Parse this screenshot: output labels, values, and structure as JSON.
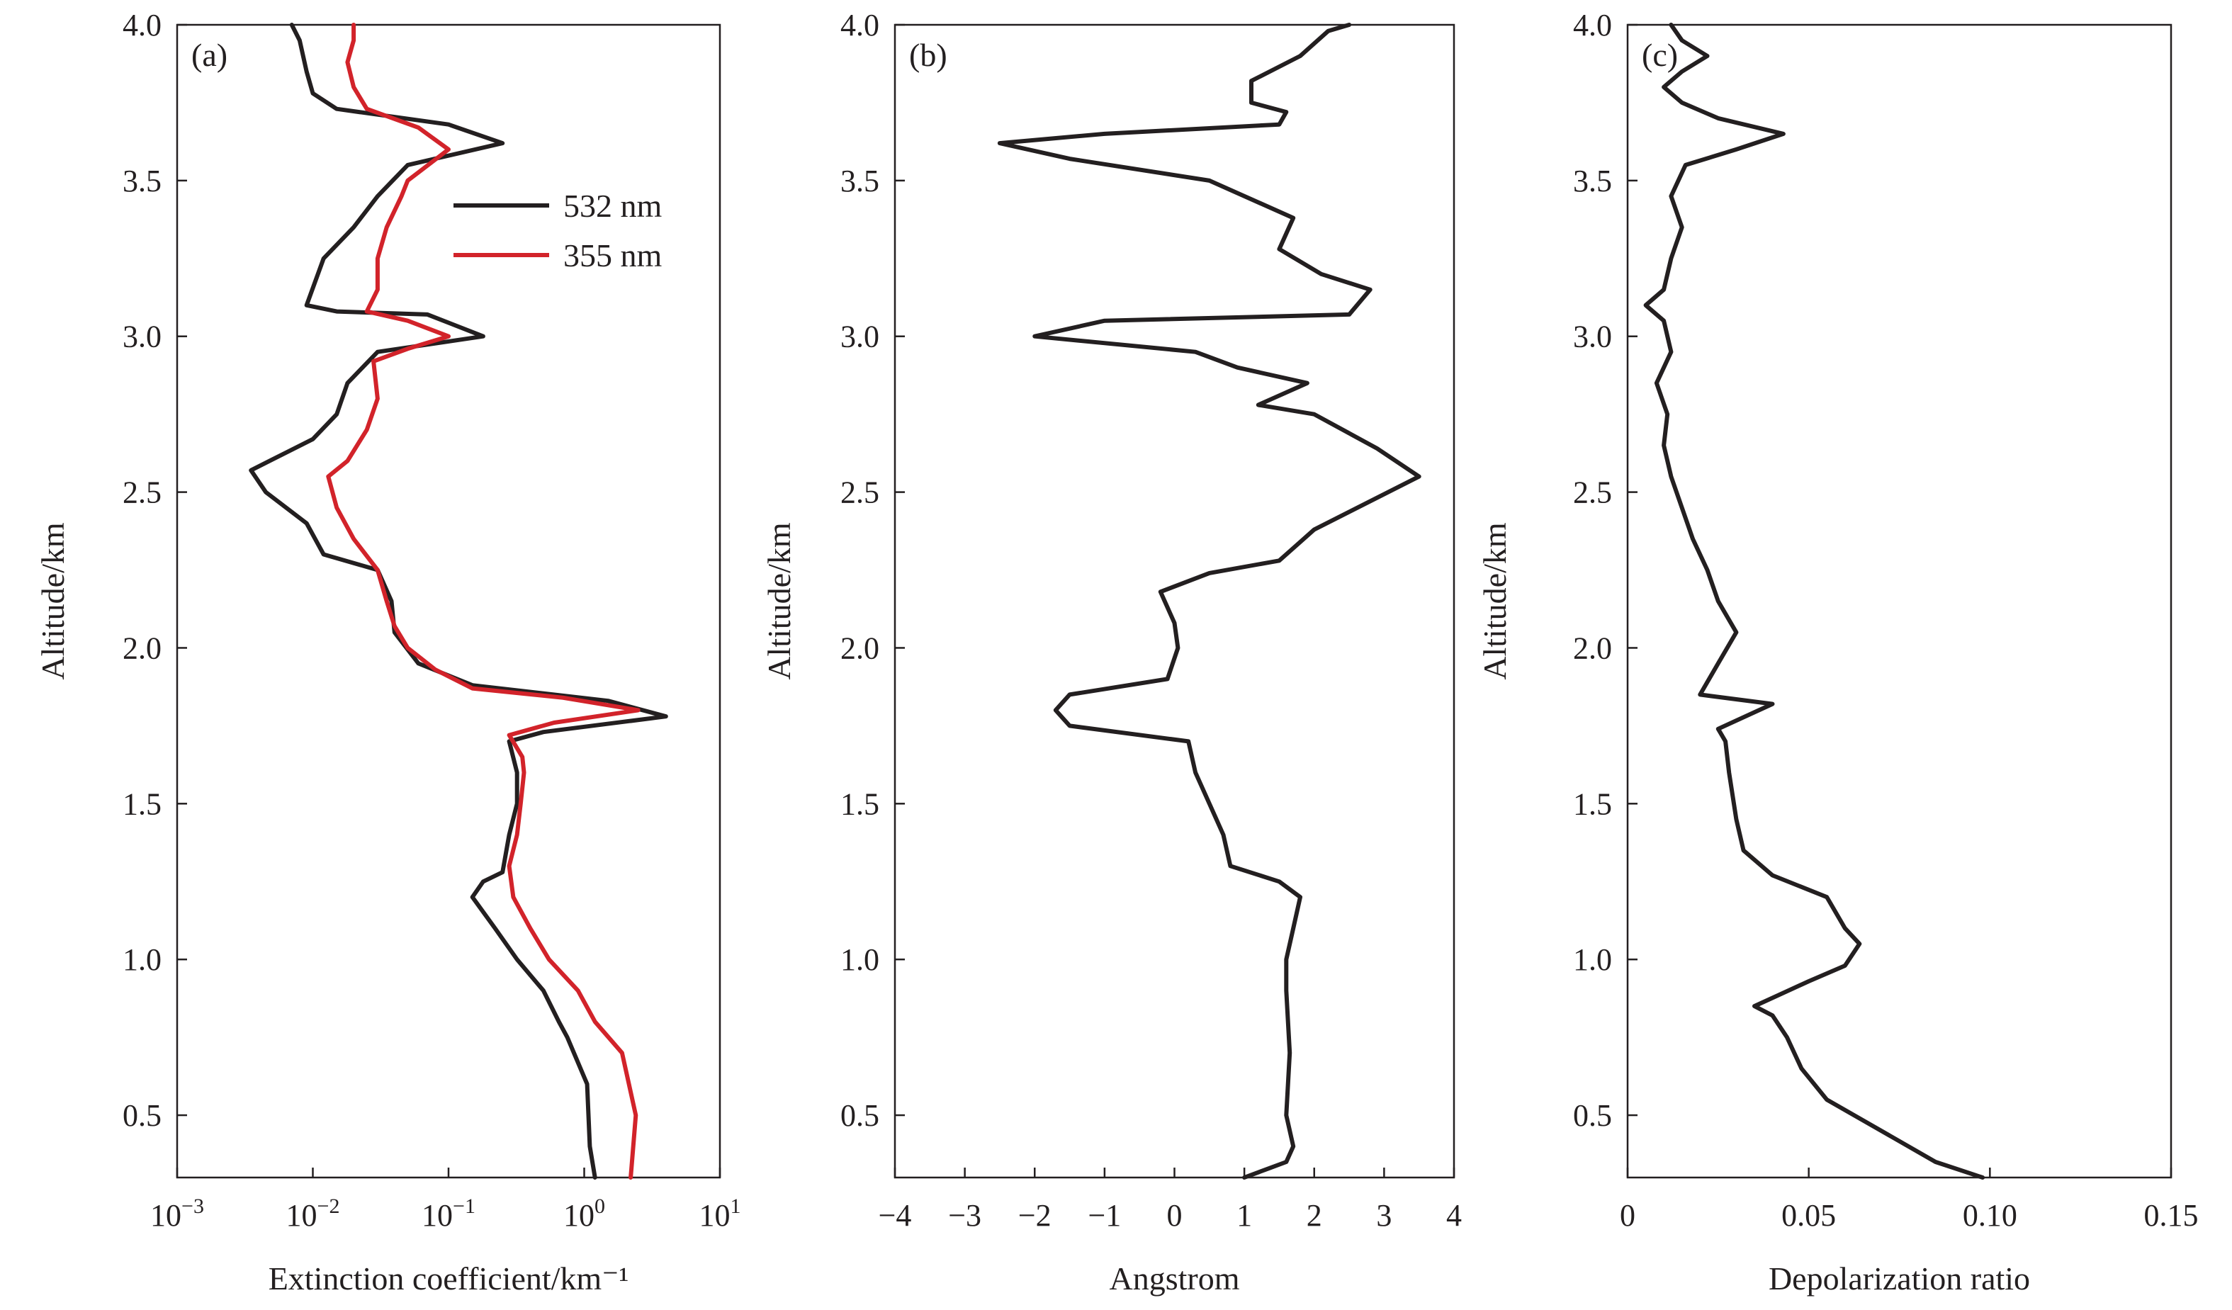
{
  "chart_data": [
    {
      "type": "line",
      "panel_label": "(a)",
      "xlabel": "Extinction coefficient/km⁻¹",
      "ylabel": "Altitude/km",
      "xscale": "log",
      "xlim": [
        0.001,
        10
      ],
      "ylim": [
        0.3,
        4.0
      ],
      "xticks": [
        {
          "value": 0.001,
          "base": "10",
          "exp": "−3"
        },
        {
          "value": 0.01,
          "base": "10",
          "exp": "−2"
        },
        {
          "value": 0.1,
          "base": "10",
          "exp": "−1"
        },
        {
          "value": 1,
          "base": "10",
          "exp": "0"
        },
        {
          "value": 10,
          "base": "10",
          "exp": "1"
        }
      ],
      "yticks": [
        "0.5",
        "1.0",
        "1.5",
        "2.0",
        "2.5",
        "3.0",
        "3.5",
        "4.0"
      ],
      "legend": "top-right",
      "grid": false,
      "series": [
        {
          "name": "532 nm",
          "color": "#231f20",
          "points": [
            [
              1.2,
              0.3
            ],
            [
              1.1,
              0.4
            ],
            [
              1.05,
              0.6
            ],
            [
              0.75,
              0.75
            ],
            [
              0.65,
              0.8
            ],
            [
              0.5,
              0.9
            ],
            [
              0.32,
              1.0
            ],
            [
              0.22,
              1.1
            ],
            [
              0.15,
              1.2
            ],
            [
              0.18,
              1.25
            ],
            [
              0.25,
              1.28
            ],
            [
              0.28,
              1.4
            ],
            [
              0.32,
              1.5
            ],
            [
              0.32,
              1.6
            ],
            [
              0.28,
              1.7
            ],
            [
              0.5,
              1.73
            ],
            [
              4.0,
              1.78
            ],
            [
              1.5,
              1.83
            ],
            [
              0.15,
              1.88
            ],
            [
              0.06,
              1.95
            ],
            [
              0.04,
              2.05
            ],
            [
              0.038,
              2.15
            ],
            [
              0.03,
              2.25
            ],
            [
              0.012,
              2.3
            ],
            [
              0.009,
              2.4
            ],
            [
              0.0045,
              2.5
            ],
            [
              0.0035,
              2.57
            ],
            [
              0.01,
              2.67
            ],
            [
              0.015,
              2.75
            ],
            [
              0.018,
              2.85
            ],
            [
              0.03,
              2.95
            ],
            [
              0.18,
              3.0
            ],
            [
              0.07,
              3.07
            ],
            [
              0.015,
              3.08
            ],
            [
              0.009,
              3.1
            ],
            [
              0.012,
              3.25
            ],
            [
              0.02,
              3.35
            ],
            [
              0.03,
              3.45
            ],
            [
              0.05,
              3.55
            ],
            [
              0.25,
              3.62
            ],
            [
              0.1,
              3.68
            ],
            [
              0.015,
              3.73
            ],
            [
              0.01,
              3.78
            ],
            [
              0.009,
              3.85
            ],
            [
              0.008,
              3.95
            ],
            [
              0.007,
              4.0
            ]
          ]
        },
        {
          "name": "355 nm",
          "color": "#d2232a",
          "points": [
            [
              2.2,
              0.3
            ],
            [
              2.4,
              0.5
            ],
            [
              1.9,
              0.7
            ],
            [
              1.2,
              0.8
            ],
            [
              0.9,
              0.9
            ],
            [
              0.55,
              1.0
            ],
            [
              0.4,
              1.1
            ],
            [
              0.3,
              1.2
            ],
            [
              0.28,
              1.3
            ],
            [
              0.32,
              1.4
            ],
            [
              0.34,
              1.5
            ],
            [
              0.36,
              1.6
            ],
            [
              0.35,
              1.65
            ],
            [
              0.28,
              1.72
            ],
            [
              0.6,
              1.76
            ],
            [
              2.5,
              1.8
            ],
            [
              0.7,
              1.84
            ],
            [
              0.15,
              1.87
            ],
            [
              0.08,
              1.93
            ],
            [
              0.05,
              2.0
            ],
            [
              0.04,
              2.07
            ],
            [
              0.035,
              2.15
            ],
            [
              0.03,
              2.25
            ],
            [
              0.02,
              2.35
            ],
            [
              0.015,
              2.45
            ],
            [
              0.013,
              2.55
            ],
            [
              0.018,
              2.6
            ],
            [
              0.025,
              2.7
            ],
            [
              0.03,
              2.8
            ],
            [
              0.028,
              2.92
            ],
            [
              0.05,
              2.96
            ],
            [
              0.1,
              3.0
            ],
            [
              0.05,
              3.05
            ],
            [
              0.025,
              3.08
            ],
            [
              0.03,
              3.15
            ],
            [
              0.03,
              3.25
            ],
            [
              0.035,
              3.35
            ],
            [
              0.045,
              3.45
            ],
            [
              0.05,
              3.5
            ],
            [
              0.1,
              3.6
            ],
            [
              0.06,
              3.67
            ],
            [
              0.025,
              3.73
            ],
            [
              0.02,
              3.8
            ],
            [
              0.018,
              3.88
            ],
            [
              0.02,
              3.95
            ],
            [
              0.02,
              4.0
            ]
          ]
        }
      ]
    },
    {
      "type": "line",
      "panel_label": "(b)",
      "xlabel": "Angstrom",
      "ylabel": "Altitude/km",
      "xscale": "linear",
      "xlim": [
        -4,
        4
      ],
      "ylim": [
        0.3,
        4.0
      ],
      "xticks": [
        "−4",
        "−3",
        "−2",
        "−1",
        "0",
        "1",
        "2",
        "3",
        "4"
      ],
      "yticks": [
        "0.5",
        "1.0",
        "1.5",
        "2.0",
        "2.5",
        "3.0",
        "3.5",
        "4.0"
      ],
      "grid": false,
      "series": [
        {
          "name": "",
          "color": "#231f20",
          "points": [
            [
              1.0,
              0.3
            ],
            [
              1.6,
              0.35
            ],
            [
              1.7,
              0.4
            ],
            [
              1.6,
              0.5
            ],
            [
              1.65,
              0.7
            ],
            [
              1.6,
              0.9
            ],
            [
              1.6,
              1.0
            ],
            [
              1.7,
              1.1
            ],
            [
              1.8,
              1.2
            ],
            [
              1.5,
              1.25
            ],
            [
              0.8,
              1.3
            ],
            [
              0.7,
              1.4
            ],
            [
              0.5,
              1.5
            ],
            [
              0.3,
              1.6
            ],
            [
              0.2,
              1.7
            ],
            [
              -1.5,
              1.75
            ],
            [
              -1.7,
              1.8
            ],
            [
              -1.5,
              1.85
            ],
            [
              -0.1,
              1.9
            ],
            [
              0.05,
              2.0
            ],
            [
              0.0,
              2.08
            ],
            [
              -0.2,
              2.18
            ],
            [
              0.5,
              2.24
            ],
            [
              1.5,
              2.28
            ],
            [
              2.0,
              2.38
            ],
            [
              3.5,
              2.55
            ],
            [
              2.9,
              2.64
            ],
            [
              2.0,
              2.75
            ],
            [
              1.2,
              2.78
            ],
            [
              1.9,
              2.85
            ],
            [
              0.9,
              2.9
            ],
            [
              0.3,
              2.95
            ],
            [
              -2.0,
              3.0
            ],
            [
              -1.0,
              3.05
            ],
            [
              2.5,
              3.07
            ],
            [
              2.8,
              3.15
            ],
            [
              2.1,
              3.2
            ],
            [
              1.5,
              3.28
            ],
            [
              1.7,
              3.38
            ],
            [
              0.5,
              3.5
            ],
            [
              -1.5,
              3.57
            ],
            [
              -2.5,
              3.62
            ],
            [
              -1.0,
              3.65
            ],
            [
              1.5,
              3.68
            ],
            [
              1.6,
              3.72
            ],
            [
              1.1,
              3.75
            ],
            [
              1.1,
              3.82
            ],
            [
              1.8,
              3.9
            ],
            [
              2.2,
              3.98
            ],
            [
              2.5,
              4.0
            ]
          ]
        }
      ]
    },
    {
      "type": "line",
      "panel_label": "(c)",
      "xlabel": "Depolarization ratio",
      "ylabel": "Altitude/km",
      "xscale": "linear",
      "xlim": [
        0,
        0.15
      ],
      "ylim": [
        0.3,
        4.0
      ],
      "xticks": [
        "0",
        "0.05",
        "0.10",
        "0.15"
      ],
      "yticks": [
        "0.5",
        "1.0",
        "1.5",
        "2.0",
        "2.5",
        "3.0",
        "3.5",
        "4.0"
      ],
      "grid": false,
      "series": [
        {
          "name": "",
          "color": "#231f20",
          "points": [
            [
              0.098,
              0.3
            ],
            [
              0.085,
              0.35
            ],
            [
              0.07,
              0.45
            ],
            [
              0.055,
              0.55
            ],
            [
              0.048,
              0.65
            ],
            [
              0.044,
              0.75
            ],
            [
              0.04,
              0.82
            ],
            [
              0.035,
              0.85
            ],
            [
              0.05,
              0.93
            ],
            [
              0.06,
              0.98
            ],
            [
              0.064,
              1.05
            ],
            [
              0.06,
              1.1
            ],
            [
              0.055,
              1.2
            ],
            [
              0.04,
              1.27
            ],
            [
              0.032,
              1.35
            ],
            [
              0.03,
              1.45
            ],
            [
              0.028,
              1.6
            ],
            [
              0.027,
              1.7
            ],
            [
              0.025,
              1.74
            ],
            [
              0.04,
              1.82
            ],
            [
              0.02,
              1.85
            ],
            [
              0.025,
              1.95
            ],
            [
              0.03,
              2.05
            ],
            [
              0.025,
              2.15
            ],
            [
              0.022,
              2.25
            ],
            [
              0.018,
              2.35
            ],
            [
              0.015,
              2.45
            ],
            [
              0.012,
              2.55
            ],
            [
              0.01,
              2.65
            ],
            [
              0.011,
              2.75
            ],
            [
              0.008,
              2.85
            ],
            [
              0.012,
              2.95
            ],
            [
              0.01,
              3.05
            ],
            [
              0.005,
              3.1
            ],
            [
              0.01,
              3.15
            ],
            [
              0.012,
              3.25
            ],
            [
              0.015,
              3.35
            ],
            [
              0.012,
              3.45
            ],
            [
              0.016,
              3.55
            ],
            [
              0.03,
              3.6
            ],
            [
              0.043,
              3.65
            ],
            [
              0.025,
              3.7
            ],
            [
              0.015,
              3.75
            ],
            [
              0.01,
              3.8
            ],
            [
              0.015,
              3.85
            ],
            [
              0.022,
              3.9
            ],
            [
              0.015,
              3.95
            ],
            [
              0.012,
              4.0
            ]
          ]
        }
      ]
    }
  ]
}
